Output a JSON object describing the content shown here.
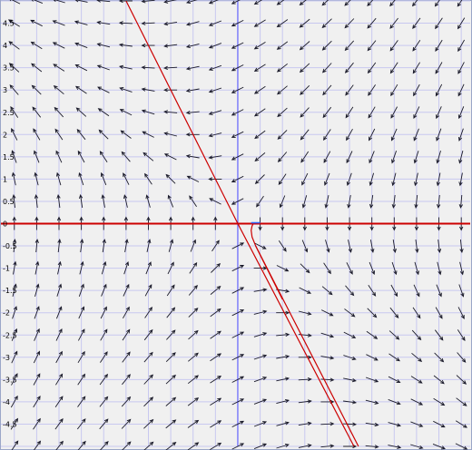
{
  "chart_data": {
    "type": "direction-field",
    "title": "",
    "xlabel": "",
    "ylabel": "",
    "xlim": [
      -5.3,
      5.2
    ],
    "ylim": [
      -5.0,
      5.0
    ],
    "grid": true,
    "y_ticks": [
      {
        "value": 4.5,
        "label": "4.5"
      },
      {
        "value": 4,
        "label": "4"
      },
      {
        "value": 3.5,
        "label": "3.5"
      },
      {
        "value": 3,
        "label": "3"
      },
      {
        "value": 2.5,
        "label": "2.5"
      },
      {
        "value": 2,
        "label": "2"
      },
      {
        "value": 1.5,
        "label": "1.5"
      },
      {
        "value": 1,
        "label": "1"
      },
      {
        "value": 0.5,
        "label": "0.5"
      },
      {
        "value": 0,
        "label": "0"
      },
      {
        "value": -0.5,
        "label": "-0.5"
      },
      {
        "value": -1,
        "label": "-1"
      },
      {
        "value": -1.5,
        "label": "-1.5"
      },
      {
        "value": -2,
        "label": "-2"
      },
      {
        "value": -2.5,
        "label": "-2.5"
      },
      {
        "value": -3,
        "label": "-3"
      },
      {
        "value": -3.5,
        "label": "-3.5"
      },
      {
        "value": -4,
        "label": "-4"
      },
      {
        "value": -4.5,
        "label": "-4.5"
      }
    ],
    "vector_field": {
      "u": "-y",
      "v": "-(x + 0.5*y)",
      "x_step": 0.5,
      "y_step": 0.5
    },
    "lines": [
      {
        "name": "",
        "color": "#cc0000",
        "points": [
          [
            -5.3,
            0
          ],
          [
            5.2,
            0
          ]
        ]
      },
      {
        "name": "",
        "color": "#cc0000",
        "points": [
          [
            -2.5,
            5.0
          ],
          [
            0,
            0
          ]
        ]
      },
      {
        "name": "",
        "color": "#cc0000",
        "points": [
          [
            0,
            0
          ],
          [
            2.6,
            -5.0
          ]
        ]
      },
      {
        "name": "",
        "color": "#cc0000",
        "points": [
          [
            0.4,
            -0.5
          ],
          [
            2.7,
            -5.0
          ]
        ]
      }
    ],
    "trajectory": {
      "color": "#cc0000",
      "points": [
        [
          0.35,
          0
        ],
        [
          0.32,
          -0.05
        ],
        [
          0.3,
          -0.15
        ],
        [
          0.32,
          -0.3
        ],
        [
          0.4,
          -0.5
        ],
        [
          0.6,
          -0.9
        ],
        [
          1.0,
          -1.7
        ]
      ]
    },
    "blue_segment": {
      "color": "#3366ff",
      "points": [
        [
          0.3,
          0.02
        ],
        [
          0.5,
          0.02
        ]
      ]
    }
  }
}
